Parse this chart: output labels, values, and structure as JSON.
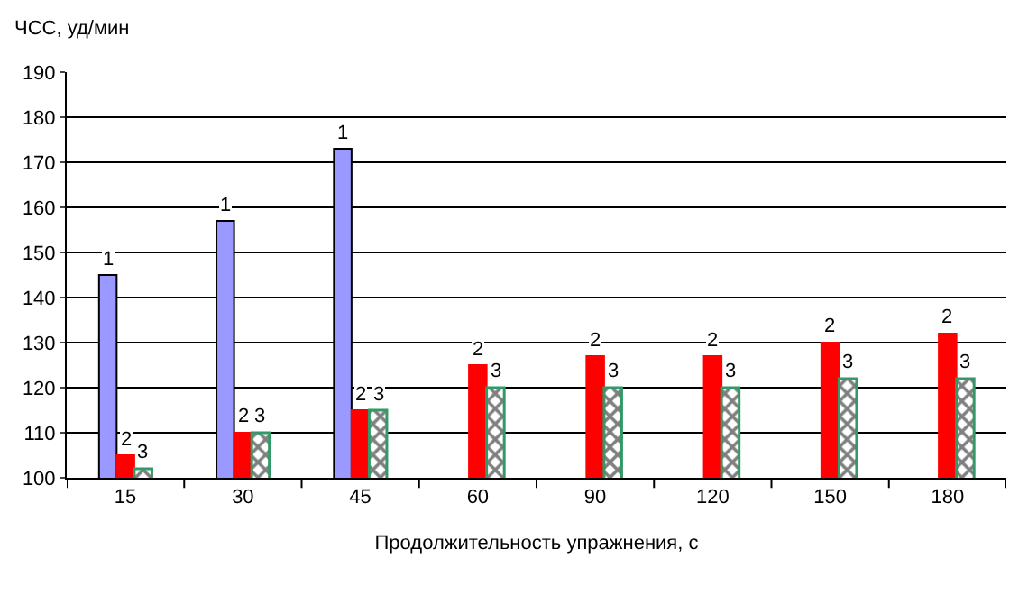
{
  "chart_data": {
    "type": "bar",
    "xlabel": "Продолжительность упражнения, с",
    "ylabel": "ЧСС, уд/мин",
    "categories": [
      "15",
      "30",
      "45",
      "60",
      "90",
      "120",
      "150",
      "180"
    ],
    "series": [
      {
        "name": "1",
        "color": "#9999ff",
        "values": [
          145,
          157,
          173,
          null,
          null,
          null,
          null,
          null
        ]
      },
      {
        "name": "2",
        "color": "#ff0000",
        "values": [
          105,
          110,
          115,
          125,
          127,
          127,
          130,
          132
        ]
      },
      {
        "name": "3",
        "color": "#339966",
        "values": [
          102,
          110,
          115,
          120,
          120,
          120,
          122,
          122
        ]
      }
    ],
    "ylim": [
      100,
      190
    ],
    "yticks": [
      100,
      110,
      120,
      130,
      140,
      150,
      160,
      170,
      180,
      190
    ],
    "grid": "y",
    "legend": false
  }
}
